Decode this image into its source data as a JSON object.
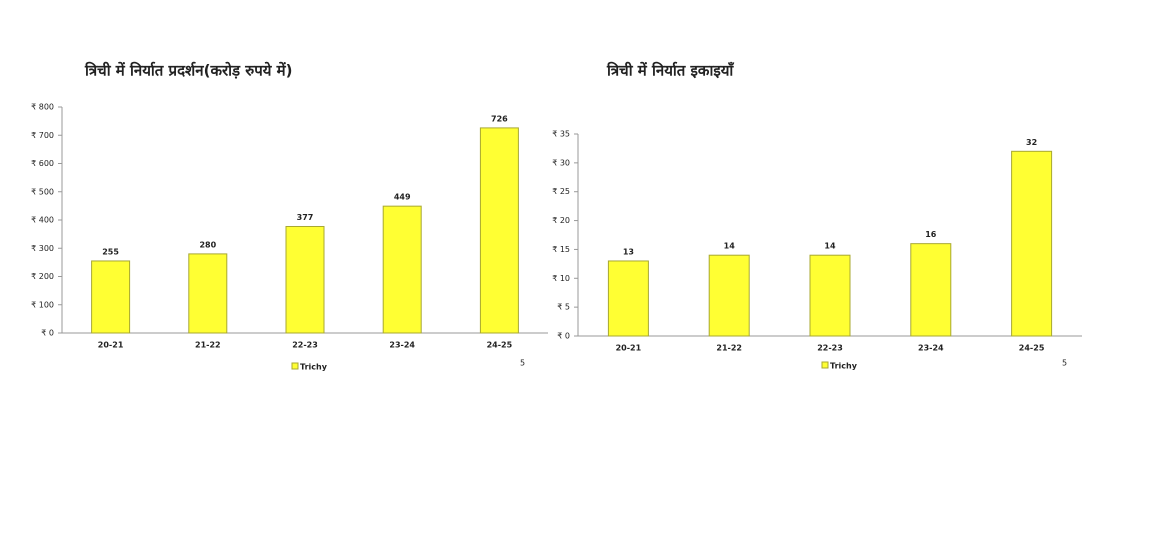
{
  "chart_data": [
    {
      "type": "bar",
      "title": "त्रिची में निर्यात प्रदर्शन(करोड़ रुपये में)",
      "categories": [
        "20-21",
        "21-22",
        "22-23",
        "23-24",
        "24-25"
      ],
      "series": [
        {
          "name": "Trichy",
          "color": "#ffff33",
          "values": [
            255,
            280,
            377,
            449,
            726
          ]
        }
      ],
      "ylim": [
        0,
        800
      ],
      "yticks": [
        {
          "value": 0,
          "label": "₹ 0"
        },
        {
          "value": 100,
          "label": "₹ 100"
        },
        {
          "value": 200,
          "label": "₹ 200"
        },
        {
          "value": 300,
          "label": "₹ 300"
        },
        {
          "value": 400,
          "label": "₹ 400"
        },
        {
          "value": 500,
          "label": "₹ 500"
        },
        {
          "value": 600,
          "label": "₹ 600"
        },
        {
          "value": 700,
          "label": "₹ 700"
        },
        {
          "value": 800,
          "label": "₹ 800"
        }
      ],
      "page_number": "5"
    },
    {
      "type": "bar",
      "title": "त्रिची में निर्यात इकाइयाँ",
      "categories": [
        "20-21",
        "21-22",
        "22-23",
        "23-24",
        "24-25"
      ],
      "series": [
        {
          "name": "Trichy",
          "color": "#ffff33",
          "values": [
            13,
            14,
            14,
            16,
            32
          ]
        }
      ],
      "ylim": [
        0,
        35
      ],
      "yticks": [
        {
          "value": 0,
          "label": "₹ 0"
        },
        {
          "value": 5,
          "label": "₹ 5"
        },
        {
          "value": 10,
          "label": "₹ 10"
        },
        {
          "value": 15,
          "label": "₹ 15"
        },
        {
          "value": 20,
          "label": "₹ 20"
        },
        {
          "value": 25,
          "label": "₹ 25"
        },
        {
          "value": 30,
          "label": "₹ 30"
        },
        {
          "value": 35,
          "label": "₹ 35"
        }
      ],
      "page_number": "5"
    }
  ]
}
